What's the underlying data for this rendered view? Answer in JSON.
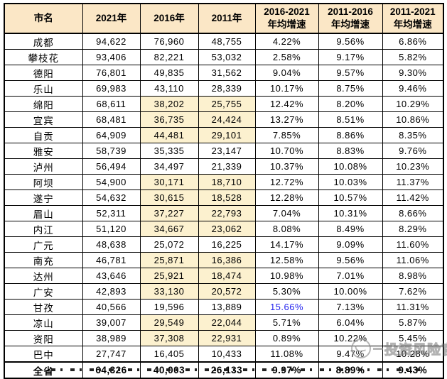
{
  "colors": {
    "header_bg": "#fbe7c6",
    "highlight_bg": "#fcf1cf",
    "border": "#000000",
    "accent_blue": "#2424ee",
    "watermark_gray": "#8d8d8d"
  },
  "watermark": {
    "text": "投资风险官"
  },
  "table": {
    "columns": [
      "市名",
      "2021年",
      "2016年",
      "2011年",
      "2016-2021\n年均增速",
      "2011-2016\n年均增速",
      "2011-2021\n年均增速"
    ],
    "rows": [
      {
        "name": "成都",
        "y2021": "94,622",
        "y2016": "76,960",
        "y2011": "48,755",
        "g2016_2021": "4.22%",
        "g2011_2016": "9.56%",
        "g2011_2021": "6.86%",
        "highlight": false
      },
      {
        "name": "攀枝花",
        "y2021": "93,406",
        "y2016": "82,221",
        "y2011": "53,032",
        "g2016_2021": "2.58%",
        "g2011_2016": "9.17%",
        "g2011_2021": "5.82%",
        "highlight": false
      },
      {
        "name": "德阳",
        "y2021": "76,801",
        "y2016": "49,835",
        "y2011": "31,562",
        "g2016_2021": "9.04%",
        "g2011_2016": "9.57%",
        "g2011_2021": "9.30%",
        "highlight": false
      },
      {
        "name": "乐山",
        "y2021": "69,983",
        "y2016": "43,110",
        "y2011": "28,339",
        "g2016_2021": "10.17%",
        "g2011_2016": "8.75%",
        "g2011_2021": "9.46%",
        "highlight": false
      },
      {
        "name": "绵阳",
        "y2021": "68,611",
        "y2016": "38,202",
        "y2011": "25,755",
        "g2016_2021": "12.42%",
        "g2011_2016": "8.20%",
        "g2011_2021": "10.29%",
        "highlight": true
      },
      {
        "name": "宜宾",
        "y2021": "68,481",
        "y2016": "36,735",
        "y2011": "24,424",
        "g2016_2021": "13.27%",
        "g2011_2016": "8.51%",
        "g2011_2021": "10.86%",
        "highlight": true
      },
      {
        "name": "自贡",
        "y2021": "64,909",
        "y2016": "44,481",
        "y2011": "29,101",
        "g2016_2021": "7.85%",
        "g2011_2016": "8.86%",
        "g2011_2021": "8.35%",
        "highlight": true
      },
      {
        "name": "雅安",
        "y2021": "58,739",
        "y2016": "35,335",
        "y2011": "23,147",
        "g2016_2021": "10.70%",
        "g2011_2016": "8.83%",
        "g2011_2021": "9.76%",
        "highlight": false
      },
      {
        "name": "泸州",
        "y2021": "56,494",
        "y2016": "34,497",
        "y2011": "21,339",
        "g2016_2021": "10.37%",
        "g2011_2016": "10.08%",
        "g2011_2021": "10.23%",
        "highlight": false
      },
      {
        "name": "阿坝",
        "y2021": "54,900",
        "y2016": "30,171",
        "y2011": "18,710",
        "g2016_2021": "12.72%",
        "g2011_2016": "10.03%",
        "g2011_2021": "11.37%",
        "highlight": true
      },
      {
        "name": "遂宁",
        "y2021": "54,632",
        "y2016": "30,615",
        "y2011": "18,528",
        "g2016_2021": "12.28%",
        "g2011_2016": "10.57%",
        "g2011_2021": "11.42%",
        "highlight": true
      },
      {
        "name": "眉山",
        "y2021": "52,311",
        "y2016": "37,227",
        "y2011": "22,793",
        "g2016_2021": "7.04%",
        "g2011_2016": "10.31%",
        "g2011_2021": "8.66%",
        "highlight": true
      },
      {
        "name": "内江",
        "y2021": "51,120",
        "y2016": "34,667",
        "y2011": "23,062",
        "g2016_2021": "8.08%",
        "g2011_2016": "8.49%",
        "g2011_2021": "8.29%",
        "highlight": true
      },
      {
        "name": "广元",
        "y2021": "48,638",
        "y2016": "25,072",
        "y2011": "16,225",
        "g2016_2021": "14.17%",
        "g2011_2016": "9.09%",
        "g2011_2021": "11.60%",
        "highlight": false
      },
      {
        "name": "南充",
        "y2021": "46,781",
        "y2016": "25,871",
        "y2011": "16,386",
        "g2016_2021": "12.58%",
        "g2011_2016": "9.56%",
        "g2011_2021": "11.06%",
        "highlight": true
      },
      {
        "name": "达州",
        "y2021": "43,646",
        "y2016": "25,921",
        "y2011": "18,474",
        "g2016_2021": "10.98%",
        "g2011_2016": "7.01%",
        "g2011_2021": "8.98%",
        "highlight": true
      },
      {
        "name": "广安",
        "y2021": "42,893",
        "y2016": "33,130",
        "y2011": "20,572",
        "g2016_2021": "5.30%",
        "g2011_2016": "10.00%",
        "g2011_2021": "7.62%",
        "highlight": true
      },
      {
        "name": "甘孜",
        "y2021": "40,566",
        "y2016": "19,596",
        "y2011": "13,889",
        "g2016_2021": "15.66%",
        "g2011_2016": "7.13%",
        "g2011_2021": "11.31%",
        "highlight": false,
        "g1_accent": true
      },
      {
        "name": "凉山",
        "y2021": "39,007",
        "y2016": "29,549",
        "y2011": "22,044",
        "g2016_2021": "5.71%",
        "g2011_2016": "6.04%",
        "g2011_2021": "5.87%",
        "highlight": true
      },
      {
        "name": "资阳",
        "y2021": "38,989",
        "y2016": "37,308",
        "y2011": "22,931",
        "g2016_2021": "0.89%",
        "g2011_2016": "10.22%",
        "g2011_2021": "5.45%",
        "highlight": true
      },
      {
        "name": "巴中",
        "y2021": "27,747",
        "y2016": "16,405",
        "y2011": "10,433",
        "g2016_2021": "11.08%",
        "g2011_2016": "9.47%",
        "g2011_2021": "10.28%",
        "highlight": false
      },
      {
        "name": "全省",
        "y2021": "64,326",
        "y2016": "40,003",
        "y2011": "26,133",
        "g2016_2021": "9.97%",
        "g2011_2016": "8.89%",
        "g2011_2021": "9.43%",
        "highlight": false,
        "total": true
      }
    ]
  }
}
